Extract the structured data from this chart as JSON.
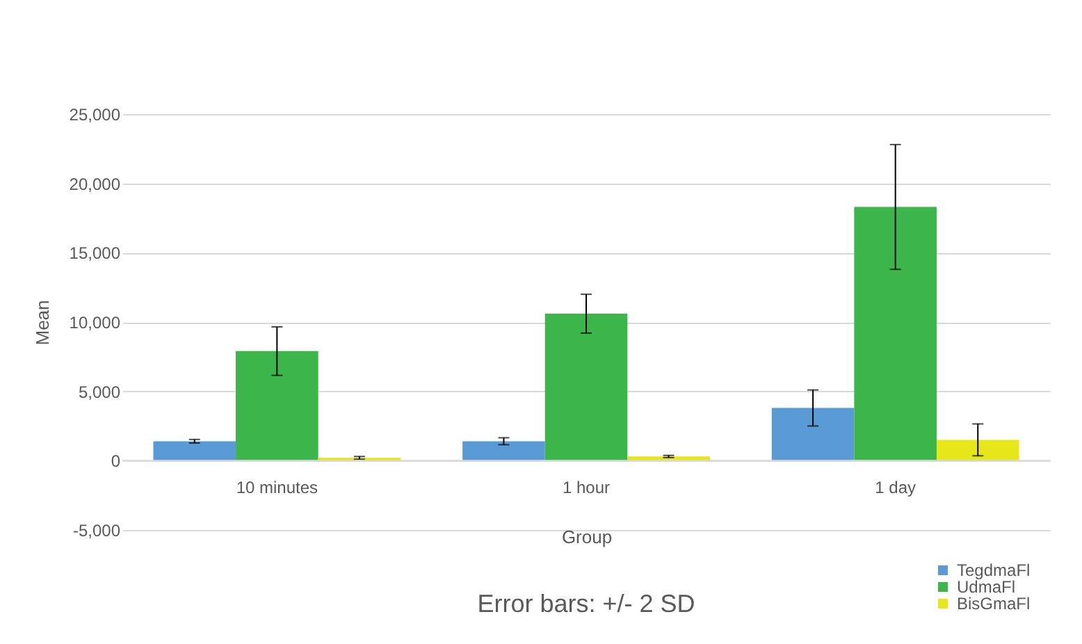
{
  "chart_data": {
    "type": "bar",
    "xlabel": "Group",
    "ylabel": "Mean",
    "annotations": [
      "Error bars: +/- 2 SD"
    ],
    "categories": [
      "10 minutes",
      "1 hour",
      "1 day"
    ],
    "series": [
      {
        "name": "TegdmaFl",
        "color": "#5b9bd5",
        "values": [
          1400,
          1400,
          3800
        ],
        "errors": [
          130,
          250,
          1300
        ]
      },
      {
        "name": "UdmaFl",
        "color": "#3cb54a",
        "values": [
          7900,
          10600,
          18300
        ],
        "errors": [
          1750,
          1400,
          4500
        ]
      },
      {
        "name": "BisGmaFl",
        "color": "#e6e619",
        "values": [
          200,
          300,
          1500
        ],
        "errors": [
          100,
          80,
          1150
        ]
      }
    ],
    "ylim": [
      -5000,
      25000
    ],
    "yticks": [
      {
        "value": -5000,
        "label": "-5,000"
      },
      {
        "value": 0,
        "label": "0"
      },
      {
        "value": 5000,
        "label": "5,000"
      },
      {
        "value": 10000,
        "label": "10,000"
      },
      {
        "value": 15000,
        "label": "15,000"
      },
      {
        "value": 20000,
        "label": "20,000"
      },
      {
        "value": 25000,
        "label": "25,000"
      }
    ],
    "grid": "y",
    "legend": "bottom right"
  }
}
